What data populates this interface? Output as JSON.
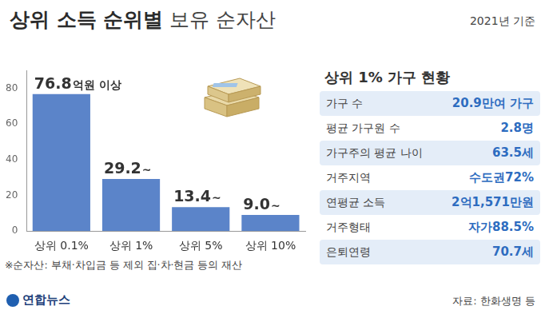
{
  "header": {
    "title": [
      "상위 소득 순위별",
      "보유 순자산"
    ],
    "subtitle": "2021년 기준"
  },
  "chart_data": {
    "type": "bar",
    "categories": [
      "상위 0.1%",
      "상위 1%",
      "상위 5%",
      "상위 10%"
    ],
    "values": [
      76.8,
      29.2,
      13.4,
      9.0
    ],
    "value_labels": [
      "76.8억원 이상",
      "29.2~",
      "13.4~",
      "9.0~"
    ],
    "data_labels": true,
    "color": "#5b84c9",
    "ylim": [
      0,
      90
    ],
    "yticks": [
      0,
      20,
      40,
      60,
      80
    ],
    "grid": false
  },
  "panel": {
    "title": "상위 1% 가구 현황",
    "rows": [
      [
        "가구 수",
        "20.9만여 가구"
      ],
      [
        "평균 가구원 수",
        "2.8명"
      ],
      [
        "가구주의 평균 나이",
        "63.5세"
      ],
      [
        "거주지역",
        "수도권72%"
      ],
      [
        "연평균 소득",
        "2억1,571만원"
      ],
      [
        "거주형태",
        "자가88.5%"
      ],
      [
        "은퇴연령",
        "70.7세"
      ]
    ]
  },
  "footnote": "※순자산: 부채·차입금 등 제외 집·차·현금 등의 재산",
  "logo": "연합뉴스",
  "source": "자료: 한화생명 등"
}
